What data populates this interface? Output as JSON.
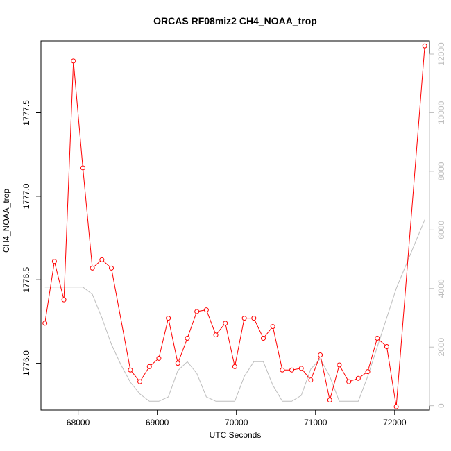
{
  "chart_data": {
    "type": "line",
    "title": "ORCAS RF08miz2 CH4_NOAA_trop",
    "xlabel": "UTC Seconds",
    "ylabel": "CH4_NOAA_trop",
    "y2label": "",
    "xlim": [
      67530,
      72440
    ],
    "ylim": [
      1775.72,
      1777.93
    ],
    "y2lim": [
      -150,
      12450
    ],
    "x_ticks": [
      68000,
      69000,
      70000,
      71000,
      72000
    ],
    "y_ticks": [
      1776.0,
      1776.5,
      1777.0,
      1777.5
    ],
    "y2_ticks": [
      0,
      2000,
      4000,
      6000,
      8000,
      10000,
      12000
    ],
    "grid": false,
    "legend": "none",
    "colors": {
      "primary": "#ff0000",
      "secondary": "#bebebe",
      "axis": "#000000"
    },
    "series": [
      {
        "axis": "left",
        "style": "line+open-circle-markers",
        "color": "#ff0000",
        "x": [
          67580,
          67700,
          67820,
          67940,
          68060,
          68180,
          68300,
          68420,
          68660,
          68780,
          68900,
          69020,
          69140,
          69260,
          69380,
          69500,
          69620,
          69740,
          69860,
          69980,
          70100,
          70220,
          70340,
          70460,
          70580,
          70700,
          70820,
          70940,
          71060,
          71180,
          71300,
          71420,
          71540,
          71660,
          71780,
          71900,
          72020,
          72380
        ],
        "values": [
          1776.24,
          1776.61,
          1776.38,
          1777.81,
          1777.17,
          1776.57,
          1776.62,
          1776.57,
          1775.96,
          1775.89,
          1775.98,
          1776.03,
          1776.27,
          1776.0,
          1776.15,
          1776.31,
          1776.32,
          1776.17,
          1776.24,
          1775.98,
          1776.27,
          1776.27,
          1776.15,
          1776.22,
          1775.96,
          1775.96,
          1775.97,
          1775.9,
          1776.05,
          1775.78,
          1775.99,
          1775.89,
          1775.91,
          1775.95,
          1776.15,
          1776.1,
          1775.74,
          1777.9
        ]
      },
      {
        "axis": "right",
        "style": "line",
        "color": "#bebebe",
        "x": [
          67580,
          67820,
          68060,
          68180,
          68300,
          68420,
          68540,
          68660,
          68780,
          68900,
          69020,
          69140,
          69260,
          69380,
          69500,
          69620,
          69740,
          69860,
          69980,
          70100,
          70220,
          70340,
          70460,
          70580,
          70700,
          70820,
          70940,
          71060,
          71180,
          71300,
          71420,
          71540,
          71660,
          71780,
          71900,
          72020,
          72380
        ],
        "values": [
          4050,
          4050,
          4050,
          3800,
          3000,
          2100,
          1400,
          800,
          400,
          150,
          150,
          300,
          1200,
          1500,
          1100,
          300,
          150,
          150,
          150,
          1000,
          1500,
          1500,
          700,
          150,
          150,
          350,
          1250,
          1600,
          1000,
          150,
          150,
          150,
          1000,
          2000,
          3000,
          4000,
          6350
        ]
      }
    ]
  }
}
